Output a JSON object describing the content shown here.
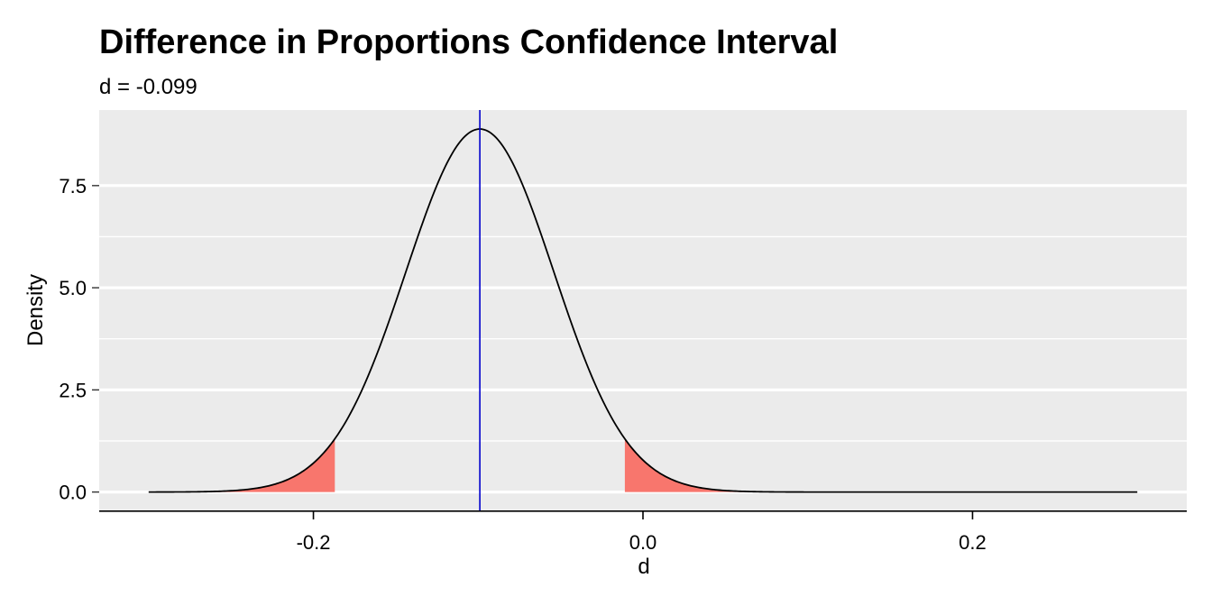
{
  "chart_data": {
    "type": "area",
    "title": "Difference in Proportions Confidence Interval",
    "subtitle": "d = -0.099",
    "xlabel": "d",
    "ylabel": "Density",
    "x_ticks": [
      -0.2,
      0.0,
      0.2
    ],
    "x_tick_labels": [
      "-0.2",
      "0.0",
      "0.2"
    ],
    "y_ticks": [
      0,
      2.5,
      5,
      7.5
    ],
    "y_tick_labels": [
      "0.0",
      "2.5",
      "5.0",
      "7.5"
    ],
    "xlim": [
      -0.33,
      0.33
    ],
    "ylim": [
      -0.45,
      9.35
    ],
    "curve": {
      "mean": -0.099,
      "sd": 0.0449,
      "x_range": [
        -0.3,
        0.3
      ]
    },
    "shaded_tails": {
      "lower": [
        -0.3,
        -0.187
      ],
      "upper": [
        -0.011,
        0.3
      ]
    },
    "vline": -0.099,
    "grid": true,
    "legend": "none",
    "colors": {
      "panel": "#EBEBEB",
      "grid": "#FFFFFF",
      "curve": "#000000",
      "tail_fill": "#F8766D",
      "vline": "#0000CC"
    }
  }
}
